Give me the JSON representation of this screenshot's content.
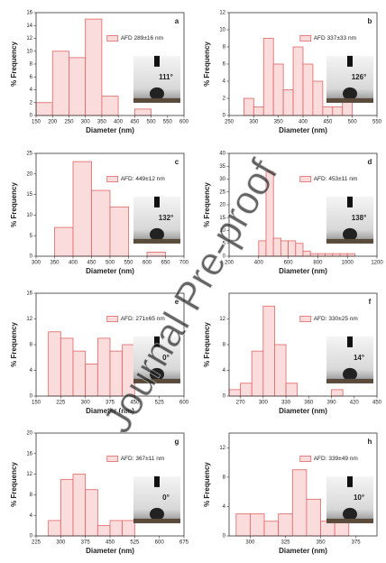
{
  "chart_data": [
    {
      "type": "histogram",
      "panel_label": "a",
      "legend": "AFD 289±16 nm",
      "annotation": "111°",
      "xlabel": "Diameter (nm)",
      "ylabel": "% Frequency",
      "bins": [
        150,
        200,
        250,
        300,
        350,
        400,
        450,
        500
      ],
      "counts": [
        2,
        10,
        9,
        15,
        3,
        0,
        1
      ],
      "xlim": [
        150,
        600
      ],
      "xticks": [
        150,
        200,
        250,
        300,
        350,
        400,
        450,
        500,
        550,
        600
      ],
      "ylim": [
        0,
        16
      ],
      "yticks": [
        0,
        2,
        4,
        6,
        8,
        10,
        12,
        14,
        16
      ],
      "color": "#fbdcdc",
      "edgecolor": "#e06464"
    },
    {
      "type": "histogram",
      "panel_label": "b",
      "legend": "AFD 337±33 nm",
      "annotation": "126°",
      "xlabel": "Diameter (nm)",
      "ylabel": "% Frequency",
      "bins": [
        280,
        300,
        320,
        340,
        360,
        380,
        400,
        420,
        440,
        460,
        480,
        500
      ],
      "counts": [
        2,
        1,
        9,
        6,
        3,
        8,
        6,
        4,
        1,
        1,
        2
      ],
      "xlim": [
        250,
        550
      ],
      "xticks": [
        250,
        300,
        350,
        400,
        450,
        500,
        550
      ],
      "ylim": [
        0,
        12
      ],
      "yticks": [
        0,
        2,
        4,
        6,
        8,
        10,
        12
      ],
      "color": "#fbdcdc",
      "edgecolor": "#e06464"
    },
    {
      "type": "histogram",
      "panel_label": "c",
      "legend": "AFD: 449±12 nm",
      "annotation": "132°",
      "xlabel": "Diameter (nm)",
      "ylabel": "% Frequency",
      "bins": [
        350,
        400,
        450,
        500,
        550,
        600,
        650
      ],
      "counts": [
        7,
        23,
        16,
        12,
        0,
        1
      ],
      "xlim": [
        300,
        700
      ],
      "xticks": [
        300,
        350,
        400,
        450,
        500,
        550,
        600,
        650,
        700
      ],
      "ylim": [
        0,
        25
      ],
      "yticks": [
        0,
        5,
        10,
        15,
        20,
        25
      ],
      "color": "#fbdcdc",
      "edgecolor": "#e06464"
    },
    {
      "type": "histogram",
      "panel_label": "d",
      "legend": "AFD: 453±11 nm",
      "annotation": "138°",
      "xlabel": "Diameter (nm)",
      "ylabel": "% Frequency",
      "bins": [
        400,
        450,
        500,
        550,
        600,
        650,
        700,
        750,
        800,
        850,
        900,
        950,
        1000,
        1050
      ],
      "counts": [
        6,
        33,
        7,
        6,
        6,
        5,
        2,
        1,
        1,
        1,
        1,
        1,
        1
      ],
      "xlim": [
        200,
        1200
      ],
      "xticks": [
        200,
        400,
        600,
        800,
        1000,
        1200
      ],
      "ylim": [
        0,
        40
      ],
      "yticks": [
        0,
        5,
        10,
        15,
        20,
        25,
        30,
        35,
        40
      ],
      "color": "#fbdcdc",
      "edgecolor": "#e06464"
    },
    {
      "type": "histogram",
      "panel_label": "e",
      "legend": "AFD: 271±65 nm",
      "annotation": "0°",
      "xlabel": "Diameter (nm)",
      "ylabel": "% Frequency",
      "bins": [
        187.5,
        225,
        262.5,
        300,
        337.5,
        375,
        412.5,
        450
      ],
      "counts": [
        10,
        9,
        7,
        5,
        9,
        7,
        8
      ],
      "xlim": [
        150,
        600
      ],
      "xticks": [
        150,
        225,
        300,
        375,
        450,
        525,
        600
      ],
      "ylim": [
        0,
        16
      ],
      "yticks": [
        0,
        4,
        8,
        12,
        16
      ],
      "color": "#fbdcdc",
      "edgecolor": "#e06464"
    },
    {
      "type": "histogram",
      "panel_label": "f",
      "legend": "AFD: 330±25 nm",
      "annotation": "14°",
      "xlabel": "Diameter (nm)",
      "ylabel": "% Frequency",
      "bins": [
        255,
        270,
        285,
        300,
        315,
        330,
        345,
        360,
        375,
        390,
        405,
        420
      ],
      "counts": [
        1,
        2,
        7,
        14,
        8,
        2,
        0,
        0,
        0,
        1,
        0
      ],
      "xlim": [
        255,
        450
      ],
      "xticks": [
        270,
        300,
        330,
        360,
        390,
        420,
        450
      ],
      "ylim": [
        0,
        16
      ],
      "yticks": [
        0,
        4,
        8,
        12
      ],
      "color": "#fbdcdc",
      "edgecolor": "#e06464"
    },
    {
      "type": "histogram",
      "panel_label": "g",
      "legend": "AFD: 367±11 nm",
      "annotation": "0°",
      "xlabel": "Diameter (nm)",
      "ylabel": "% Frequency",
      "bins": [
        262.5,
        300,
        337.5,
        375,
        412.5,
        450,
        487.5,
        525
      ],
      "counts": [
        3,
        11,
        12,
        9,
        2,
        3,
        3
      ],
      "xlim": [
        225,
        675
      ],
      "xticks": [
        225,
        300,
        375,
        450,
        525,
        600,
        675
      ],
      "ylim": [
        0,
        20
      ],
      "yticks": [
        0,
        4,
        8,
        12,
        16,
        20
      ],
      "color": "#fbdcdc",
      "edgecolor": "#e06464"
    },
    {
      "type": "histogram",
      "panel_label": "h",
      "legend": "AFD: 339±49 nm",
      "annotation": "10°",
      "xlabel": "Diameter (nm)",
      "ylabel": "% Frequency",
      "bins": [
        290,
        300,
        310,
        320,
        330,
        340,
        350,
        360,
        370
      ],
      "counts": [
        3,
        3,
        2,
        3,
        9,
        5,
        2,
        2
      ],
      "xlim": [
        285,
        390
      ],
      "xticks": [
        300,
        325,
        350,
        375
      ],
      "ylim": [
        0,
        14
      ],
      "yticks": [
        0,
        4,
        8,
        12
      ],
      "color": "#fbdcdc",
      "edgecolor": "#e06464"
    }
  ],
  "watermark": "Journal Pre-proof"
}
